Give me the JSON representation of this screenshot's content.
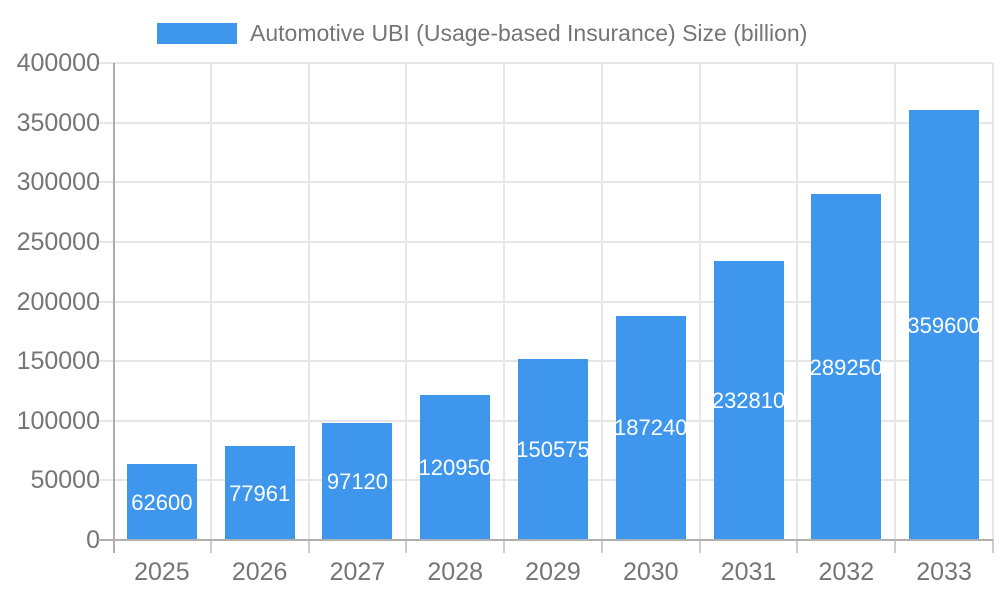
{
  "chart_data": {
    "type": "bar",
    "title": "Automotive UBI (Usage-based Insurance) Size (billion)",
    "legend_position": "top-center",
    "categories": [
      "2025",
      "2026",
      "2027",
      "2028",
      "2029",
      "2030",
      "2031",
      "2032",
      "2033"
    ],
    "series": [
      {
        "name": "Automotive UBI (Usage-based Insurance) Size (billion)",
        "values": [
          62600,
          77961,
          97120,
          120950,
          150575,
          187240,
          232810,
          289250,
          359600
        ]
      }
    ],
    "xlabel": "",
    "ylabel": "",
    "ylim": [
      0,
      400000
    ],
    "yticks": [
      0,
      50000,
      100000,
      150000,
      200000,
      250000,
      300000,
      350000,
      400000
    ],
    "grid": true,
    "colors": {
      "bar": "#3E97ED",
      "value_label": "#FFFFFF",
      "axis_text": "#757575",
      "gridline": "#E6E6E6",
      "axis_line": "#B0B0B0",
      "background": "#FFFFFF"
    }
  }
}
